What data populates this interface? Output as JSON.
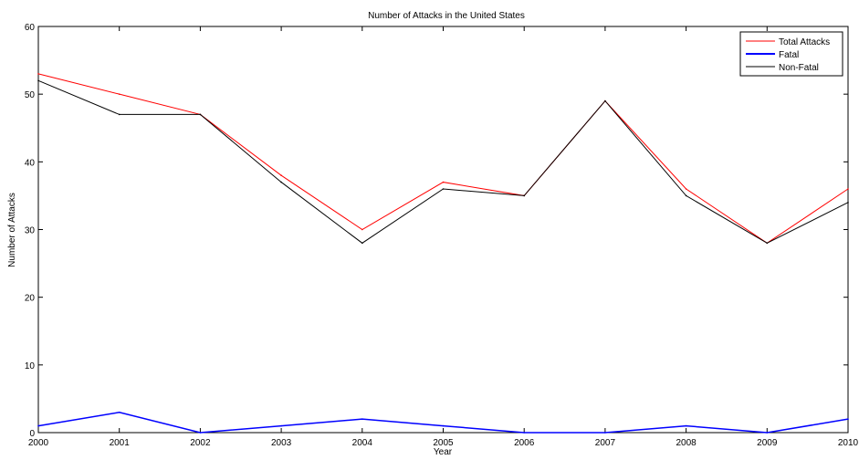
{
  "chart_data": {
    "type": "line",
    "title": "Number of Attacks in the United States",
    "xlabel": "Year",
    "ylabel": "Number of Attacks",
    "x": [
      2000,
      2001,
      2002,
      2003,
      2004,
      2005,
      2006,
      2007,
      2008,
      2009,
      2010
    ],
    "xlim": [
      2000,
      2010
    ],
    "ylim": [
      0,
      60
    ],
    "xticks": [
      "2000",
      "2001",
      "2002",
      "2003",
      "2004",
      "2005",
      "2006",
      "2007",
      "2008",
      "2009",
      "2010"
    ],
    "yticks": [
      "0",
      "10",
      "20",
      "30",
      "40",
      "50",
      "60"
    ],
    "grid": false,
    "legend_position": "top-right",
    "series": [
      {
        "name": "Total Attacks",
        "color": "#ff0000",
        "values": [
          53,
          50,
          47,
          38,
          30,
          37,
          35,
          49,
          36,
          28,
          36
        ]
      },
      {
        "name": "Fatal",
        "color": "#0000ff",
        "values": [
          1,
          3,
          0,
          1,
          2,
          1,
          0,
          0,
          1,
          0,
          2
        ]
      },
      {
        "name": "Non-Fatal",
        "color": "#000000",
        "values": [
          52,
          47,
          47,
          37,
          28,
          36,
          35,
          49,
          35,
          28,
          34
        ]
      }
    ]
  }
}
